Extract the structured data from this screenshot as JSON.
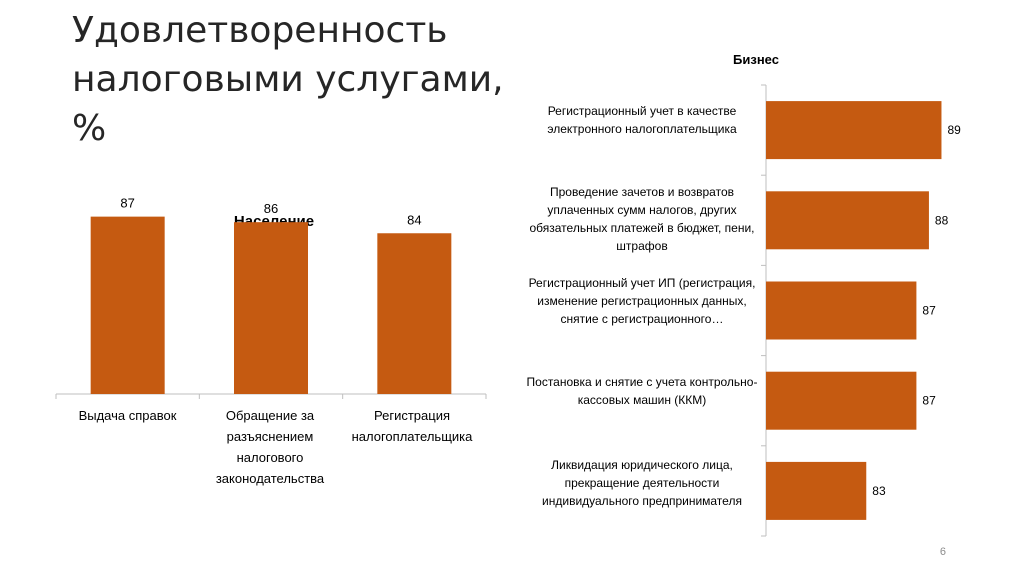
{
  "slide": {
    "title": "Удовлетворенность налоговыми услугами, %",
    "page_number": "6"
  },
  "chart_data": [
    {
      "type": "bar",
      "title": "Население",
      "categories": [
        "Выдача справок",
        "Обращение за разъяснением налогового законодательства",
        "Регистрация налогоплательщика"
      ],
      "values": [
        87,
        86,
        84
      ],
      "data_labels": [
        "87",
        "86",
        "84"
      ],
      "ylim": [
        55,
        90
      ],
      "color": "#C55A11",
      "grid": false
    },
    {
      "type": "bar",
      "orientation": "horizontal",
      "title": "Бизнес",
      "categories": [
        "Регистрационный учет в качестве электронного налогоплательщика",
        "Проведение зачетов и возвратов уплаченных сумм налогов, других обязательных платежей в бюджет, пени, штрафов",
        "Регистрационный учет ИП (регистрация, изменение регистрационных данных, снятие с регистрационного…",
        "Постановка и снятие с учета контрольно-кассовых машин (ККМ)",
        "Ликвидация юридического лица, прекращение деятельности индивидуального предпринимателя"
      ],
      "values": [
        89,
        88,
        87,
        87,
        83
      ],
      "data_labels": [
        "89",
        "88",
        "87",
        "87",
        "83"
      ],
      "xlim": [
        75,
        90
      ],
      "color": "#C55A11",
      "grid": false
    }
  ]
}
